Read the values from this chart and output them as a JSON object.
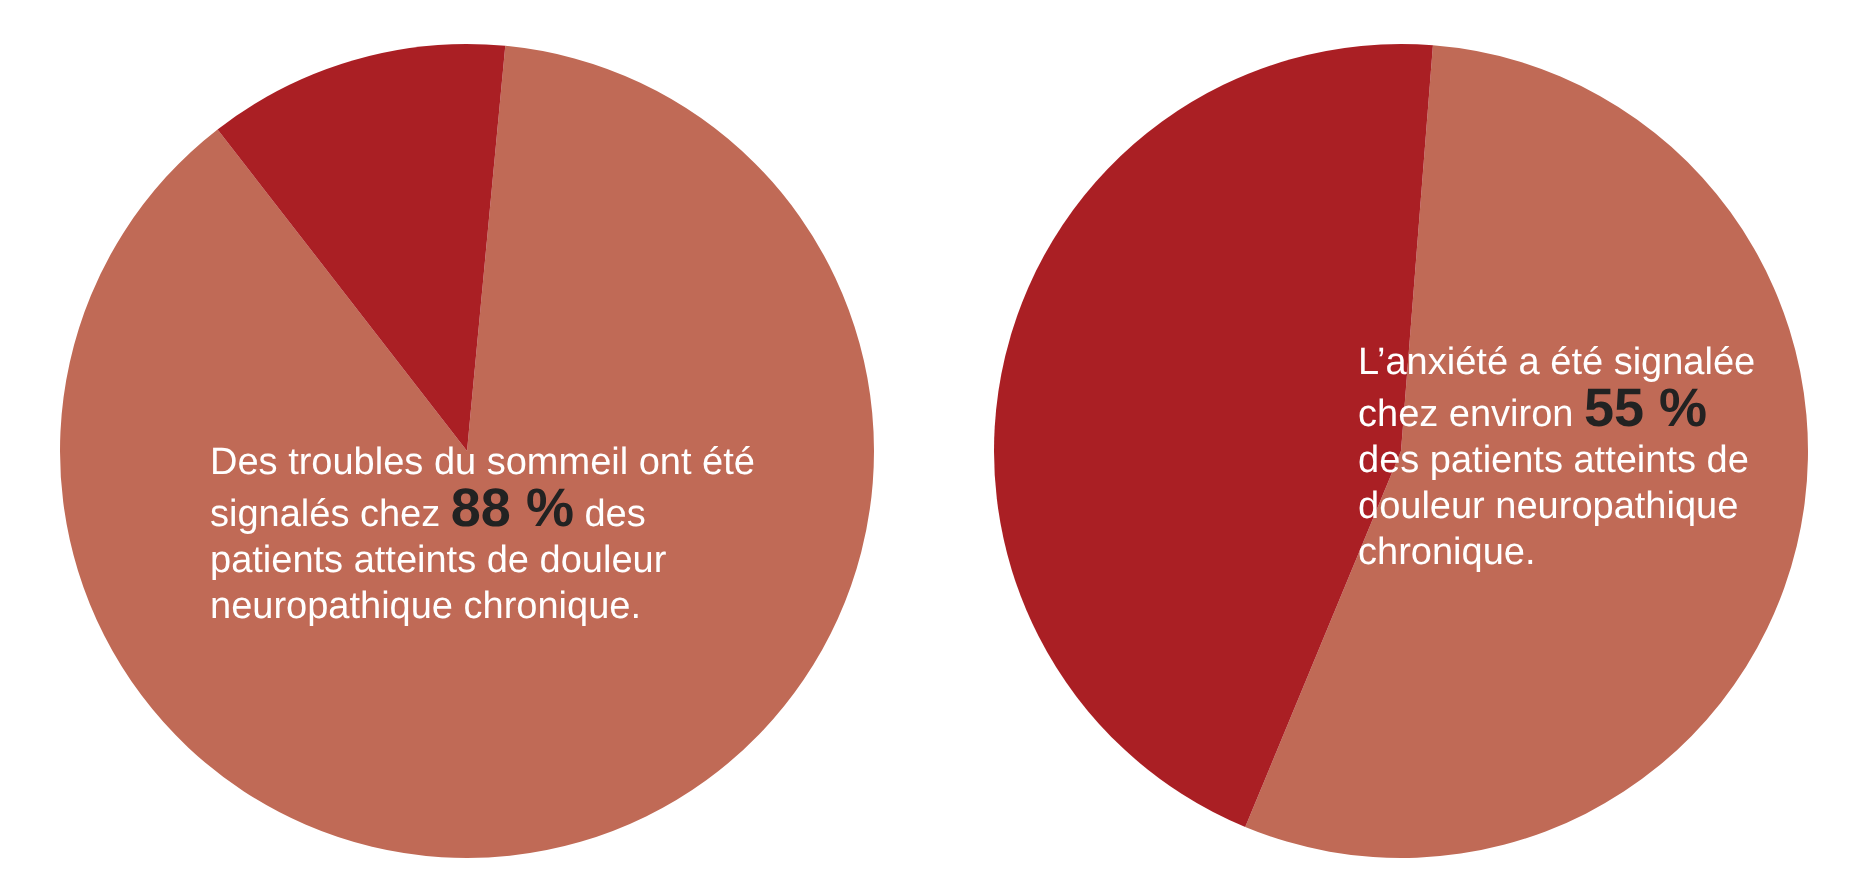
{
  "chart_data": [
    {
      "type": "pie",
      "categories": [
        null,
        null
      ],
      "values": [
        88,
        12
      ],
      "colors": [
        "#c06a56",
        "#aa1f24"
      ],
      "legend": false,
      "annotations": [
        "Des troubles du sommeil ont été signalés chez",
        "88 %",
        "des patients atteints de douleur neuropathique chronique."
      ]
    },
    {
      "type": "pie",
      "categories": [
        null,
        null
      ],
      "values": [
        55,
        45
      ],
      "colors": [
        "#c06a56",
        "#aa1f24"
      ],
      "legend": false,
      "annotations": [
        "L’anxiété a été signalée chez environ",
        "55 %",
        "des patients atteints de douleur neuropathique chronique."
      ]
    }
  ]
}
